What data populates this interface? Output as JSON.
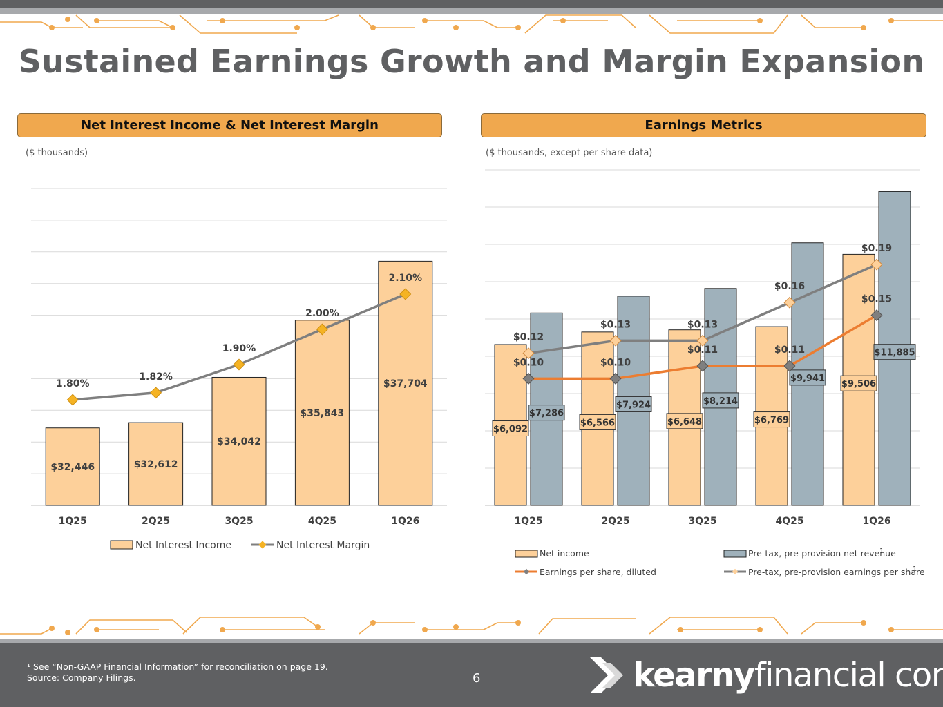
{
  "page": {
    "title": "Sustained Earnings Growth and Margin Expansion",
    "page_number": "6",
    "footnote_line1": "¹ See “Non-GAAP Financial Information” for reconciliation on page 19.",
    "footnote_line2": "Source: Company Filings.",
    "logo_bold": "kearny",
    "logo_light": "financial corp."
  },
  "colors": {
    "orange_bar": "#fdd09a",
    "gray_bar": "#9fb1bb",
    "line_gray": "#7f7f7f",
    "line_orange": "#ec7d31",
    "marker_gold": "#f5b324",
    "header": "#f0a84e"
  },
  "left_panel": {
    "header": "Net Interest Income & Net Interest Margin",
    "units": "($ thousands)"
  },
  "right_panel": {
    "header": "Earnings Metrics",
    "units": "($ thousands, except per share data)"
  },
  "chart_data": [
    {
      "type": "bar",
      "categories": [
        "1Q25",
        "2Q25",
        "3Q25",
        "4Q25",
        "1Q26"
      ],
      "series": [
        {
          "name": "Net Interest Income",
          "kind": "bar",
          "axis": "left",
          "values": [
            32446,
            32612,
            34042,
            35843,
            37704
          ],
          "labels": [
            "$32,446",
            "$32,612",
            "$34,042",
            "$35,843",
            "$37,704"
          ]
        },
        {
          "name": "Net Interest Margin",
          "kind": "line",
          "axis": "right",
          "values": [
            1.8,
            1.82,
            1.9,
            2.0,
            2.1
          ],
          "labels": [
            "1.80%",
            "1.82%",
            "1.90%",
            "2.00%",
            "2.10%"
          ]
        }
      ],
      "ylim": [
        30000,
        40000
      ],
      "y2lim": [
        1.5,
        2.4
      ],
      "legend": [
        "Net Interest Income",
        "Net Interest Margin"
      ],
      "legend_position": "bottom"
    },
    {
      "type": "bar",
      "categories": [
        "1Q25",
        "2Q25",
        "3Q25",
        "4Q25",
        "1Q26"
      ],
      "series": [
        {
          "name": "Net income",
          "kind": "bar",
          "axis": "left",
          "values": [
            6092,
            6566,
            6648,
            6769,
            9506
          ],
          "labels": [
            "$6,092",
            "$6,566",
            "$6,648",
            "$6,769",
            "$9,506"
          ]
        },
        {
          "name": "Pre-tax, pre-provision net revenue",
          "kind": "bar",
          "axis": "left",
          "values": [
            7286,
            7924,
            8214,
            9941,
            11885
          ],
          "labels": [
            "$7,286",
            "$7,924",
            "$8,214",
            "$9,941",
            "$11,885"
          ]
        },
        {
          "name": "Earnings per share, diluted",
          "kind": "line",
          "axis": "right",
          "values": [
            0.1,
            0.1,
            0.11,
            0.11,
            0.15
          ],
          "labels": [
            "$0.10",
            "$0.10",
            "$0.11",
            "$0.11",
            "$0.15"
          ]
        },
        {
          "name": "Pre-tax, pre-provision earnings per share",
          "kind": "line",
          "axis": "right",
          "values": [
            0.12,
            0.13,
            0.13,
            0.16,
            0.19
          ],
          "labels": [
            "$0.12",
            "$0.13",
            "$0.13",
            "$0.16",
            "$0.19"
          ]
        }
      ],
      "ylim": [
        0,
        12000
      ],
      "y2lim": [
        0.0,
        0.25
      ],
      "legend": [
        "Net income",
        "Pre-tax, pre-provision net revenue",
        "Earnings per share, diluted",
        "Pre-tax, pre-provision earnings per share"
      ],
      "legend_superscript": "1",
      "legend_position": "bottom"
    }
  ]
}
